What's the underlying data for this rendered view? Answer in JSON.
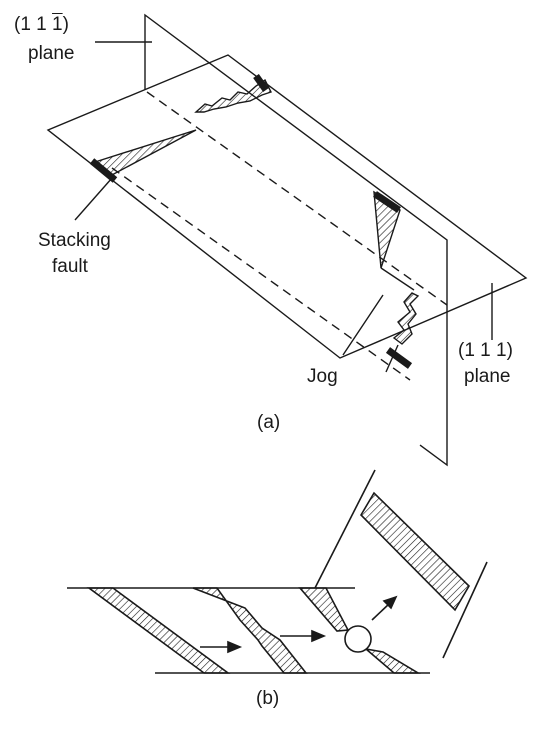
{
  "figure_a": {
    "plane_111bar": {
      "miller_prefix": "(1 1 ",
      "miller_bar": "1",
      "miller_suffix": ")",
      "word": "plane"
    },
    "stacking_fault": {
      "line1": "Stacking",
      "line2": "fault"
    },
    "jog": "Jog",
    "plane_111": {
      "miller": "(1 1 1)",
      "word": "plane"
    },
    "caption": "(a)"
  },
  "figure_b": {
    "caption": "(b)"
  },
  "colors": {
    "line": "#1a1a1a",
    "background": "#ffffff"
  }
}
